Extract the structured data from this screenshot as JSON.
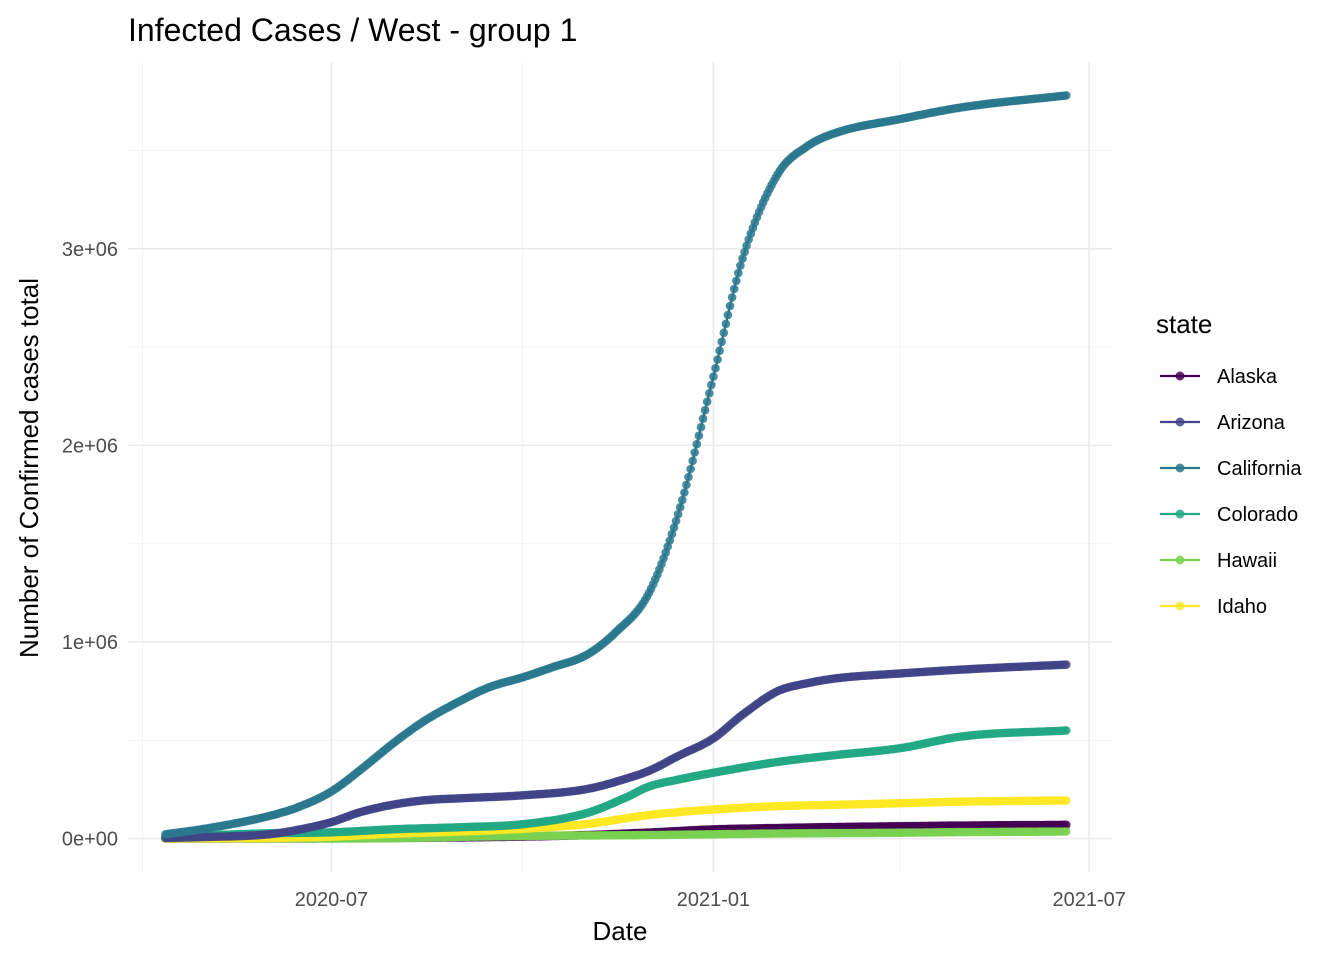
{
  "chart_data": {
    "type": "line",
    "title": "Infected Cases / West - group 1",
    "xlabel": "Date",
    "ylabel": "Number of Confirmed cases total",
    "x_ticks": [
      {
        "date": "2020-07-01",
        "label": "2020-07"
      },
      {
        "date": "2021-01-01",
        "label": "2021-01"
      },
      {
        "date": "2021-07-01",
        "label": "2021-07"
      }
    ],
    "x_minor_ticks": [
      "2020-04-01",
      "2020-10-01",
      "2021-04-01"
    ],
    "xlim": [
      "2020-03-25",
      "2021-07-12"
    ],
    "y_ticks": [
      {
        "value": 0,
        "label": "0e+00"
      },
      {
        "value": 1000000,
        "label": "1e+06"
      },
      {
        "value": 2000000,
        "label": "2e+06"
      },
      {
        "value": 3000000,
        "label": "3e+06"
      }
    ],
    "y_minor_ticks": [
      500000,
      1500000,
      2500000,
      3500000
    ],
    "ylim": [
      -170000,
      3950000
    ],
    "grid": true,
    "marker": "circle",
    "legend": {
      "title": "state",
      "position": "right"
    },
    "series": [
      {
        "name": "Alaska",
        "color": "#440154",
        "points": [
          [
            "2020-04-12",
            270
          ],
          [
            "2020-06-01",
            500
          ],
          [
            "2020-08-01",
            3500
          ],
          [
            "2020-10-01",
            10000
          ],
          [
            "2020-11-01",
            18000
          ],
          [
            "2020-12-01",
            31000
          ],
          [
            "2021-01-01",
            47000
          ],
          [
            "2021-02-01",
            54000
          ],
          [
            "2021-03-01",
            59000
          ],
          [
            "2021-04-01",
            63000
          ],
          [
            "2021-05-01",
            66500
          ],
          [
            "2021-06-20",
            70000
          ]
        ]
      },
      {
        "name": "Hawaii",
        "color": "#7AD151",
        "points": [
          [
            "2020-04-12",
            500
          ],
          [
            "2020-07-01",
            900
          ],
          [
            "2020-08-01",
            2000
          ],
          [
            "2020-09-01",
            9000
          ],
          [
            "2020-10-01",
            13000
          ],
          [
            "2020-11-01",
            16000
          ],
          [
            "2020-12-01",
            18000
          ],
          [
            "2021-01-01",
            22000
          ],
          [
            "2021-02-01",
            26000
          ],
          [
            "2021-03-01",
            28000
          ],
          [
            "2021-04-01",
            30000
          ],
          [
            "2021-05-01",
            33000
          ],
          [
            "2021-06-20",
            36000
          ]
        ]
      },
      {
        "name": "Idaho",
        "color": "#FDE725",
        "points": [
          [
            "2020-04-12",
            1400
          ],
          [
            "2020-06-01",
            3000
          ],
          [
            "2020-07-01",
            10000
          ],
          [
            "2020-08-01",
            25000
          ],
          [
            "2020-09-01",
            36000
          ],
          [
            "2020-10-01",
            50000
          ],
          [
            "2020-11-01",
            74000
          ],
          [
            "2020-12-01",
            120000
          ],
          [
            "2021-01-01",
            148000
          ],
          [
            "2021-02-01",
            165000
          ],
          [
            "2021-03-01",
            172000
          ],
          [
            "2021-04-01",
            180000
          ],
          [
            "2021-05-01",
            188000
          ],
          [
            "2021-06-20",
            194000
          ]
        ]
      },
      {
        "name": "Colorado",
        "color": "#22A884",
        "points": [
          [
            "2020-04-12",
            7000
          ],
          [
            "2020-05-01",
            16000
          ],
          [
            "2020-06-01",
            27000
          ],
          [
            "2020-07-01",
            32000
          ],
          [
            "2020-08-01",
            48000
          ],
          [
            "2020-09-01",
            58000
          ],
          [
            "2020-10-01",
            73000
          ],
          [
            "2020-11-01",
            130000
          ],
          [
            "2020-11-20",
            210000
          ],
          [
            "2020-12-01",
            265000
          ],
          [
            "2020-12-15",
            300000
          ],
          [
            "2021-01-01",
            335000
          ],
          [
            "2021-02-01",
            390000
          ],
          [
            "2021-03-01",
            425000
          ],
          [
            "2021-04-01",
            460000
          ],
          [
            "2021-05-01",
            520000
          ],
          [
            "2021-06-20",
            550000
          ]
        ]
      },
      {
        "name": "Arizona",
        "color": "#414487",
        "points": [
          [
            "2020-04-12",
            3500
          ],
          [
            "2020-05-01",
            8000
          ],
          [
            "2020-06-01",
            22000
          ],
          [
            "2020-06-15",
            45000
          ],
          [
            "2020-07-01",
            84000
          ],
          [
            "2020-07-15",
            135000
          ],
          [
            "2020-08-01",
            175000
          ],
          [
            "2020-08-15",
            195000
          ],
          [
            "2020-09-01",
            205000
          ],
          [
            "2020-10-01",
            220000
          ],
          [
            "2020-11-01",
            252000
          ],
          [
            "2020-11-20",
            305000
          ],
          [
            "2020-12-01",
            345000
          ],
          [
            "2020-12-15",
            420000
          ],
          [
            "2021-01-01",
            510000
          ],
          [
            "2021-01-15",
            630000
          ],
          [
            "2021-02-01",
            750000
          ],
          [
            "2021-02-15",
            790000
          ],
          [
            "2021-03-01",
            815000
          ],
          [
            "2021-04-01",
            840000
          ],
          [
            "2021-05-01",
            860000
          ],
          [
            "2021-06-20",
            885000
          ]
        ]
      },
      {
        "name": "California",
        "color": "#2A788E",
        "points": [
          [
            "2020-04-12",
            22000
          ],
          [
            "2020-05-01",
            50000
          ],
          [
            "2020-06-01",
            115000
          ],
          [
            "2020-06-15",
            160000
          ],
          [
            "2020-07-01",
            240000
          ],
          [
            "2020-07-15",
            350000
          ],
          [
            "2020-08-01",
            495000
          ],
          [
            "2020-08-15",
            600000
          ],
          [
            "2020-09-01",
            700000
          ],
          [
            "2020-09-15",
            770000
          ],
          [
            "2020-10-01",
            820000
          ],
          [
            "2020-10-15",
            870000
          ],
          [
            "2020-11-01",
            935000
          ],
          [
            "2020-11-15",
            1050000
          ],
          [
            "2020-12-01",
            1250000
          ],
          [
            "2020-12-15",
            1650000
          ],
          [
            "2021-01-01",
            2350000
          ],
          [
            "2021-01-15",
            2950000
          ],
          [
            "2021-02-01",
            3380000
          ],
          [
            "2021-02-15",
            3520000
          ],
          [
            "2021-03-01",
            3590000
          ],
          [
            "2021-04-01",
            3660000
          ],
          [
            "2021-05-01",
            3720000
          ],
          [
            "2021-06-20",
            3780000
          ]
        ]
      }
    ]
  }
}
